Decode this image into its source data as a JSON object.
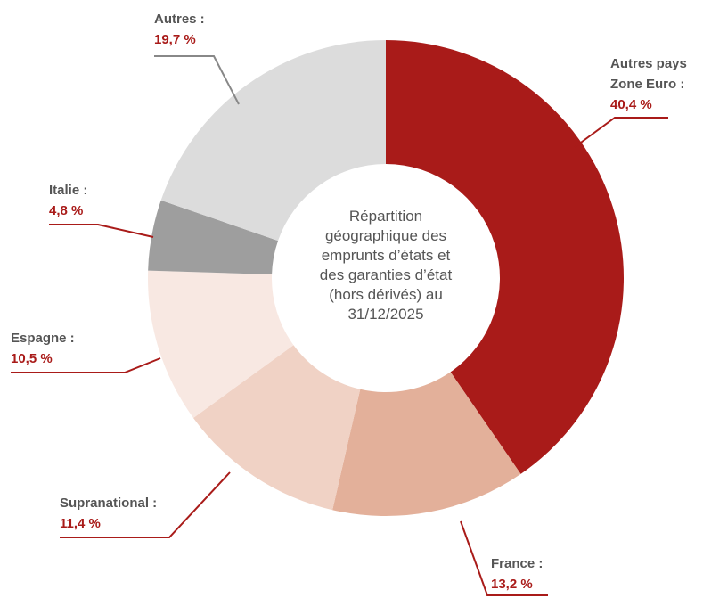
{
  "chart_data": {
    "type": "donut",
    "title": "Répartition géographique des emprunts d’états et des garanties d’état (hors dérivés) au 31/12/2025",
    "categories": [
      "Autres pays Zone Euro :",
      "France :",
      "Supranational :",
      "Espagne :",
      "Italie :",
      "Autres :"
    ],
    "values": [
      40.4,
      13.2,
      11.4,
      10.5,
      4.8,
      19.7
    ],
    "value_labels": [
      "40,4 %",
      "13,2 %",
      "11,4 %",
      "10,5 %",
      "4,8 %",
      "19,7 %"
    ],
    "colors": [
      "#a91b19",
      "#e3b09a",
      "#f0d2c5",
      "#f8e8e2",
      "#9e9e9e",
      "#dcdcdc"
    ]
  }
}
